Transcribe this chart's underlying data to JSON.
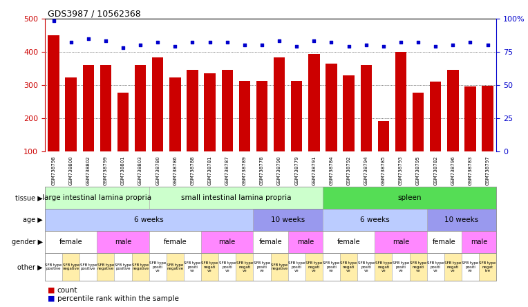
{
  "title": "GDS3987 / 10562368",
  "samples": [
    "GSM738798",
    "GSM738800",
    "GSM738802",
    "GSM738799",
    "GSM738801",
    "GSM738803",
    "GSM738780",
    "GSM738786",
    "GSM738788",
    "GSM738781",
    "GSM738787",
    "GSM738789",
    "GSM738778",
    "GSM738790",
    "GSM738779",
    "GSM738791",
    "GSM738784",
    "GSM738792",
    "GSM738794",
    "GSM738785",
    "GSM738793",
    "GSM738795",
    "GSM738782",
    "GSM738796",
    "GSM738783",
    "GSM738797"
  ],
  "counts": [
    450,
    322,
    360,
    360,
    278,
    360,
    383,
    322,
    345,
    335,
    345,
    312,
    312,
    383,
    312,
    393,
    365,
    328,
    360,
    193,
    400,
    278,
    310,
    345,
    295,
    298
  ],
  "percentiles": [
    98,
    82,
    85,
    83,
    78,
    80,
    82,
    79,
    82,
    82,
    82,
    80,
    80,
    83,
    79,
    83,
    82,
    79,
    80,
    79,
    82,
    82,
    79,
    80,
    82,
    80
  ],
  "tissue_blocks": [
    {
      "label": "large intestinal lamina propria",
      "start": 0,
      "end": 6,
      "color": "#ccffcc"
    },
    {
      "label": "small intestinal lamina propria",
      "start": 6,
      "end": 16,
      "color": "#ccffcc"
    },
    {
      "label": "spleen",
      "start": 16,
      "end": 26,
      "color": "#55dd55"
    }
  ],
  "age_blocks": [
    {
      "label": "6 weeks",
      "start": 0,
      "end": 12,
      "color": "#bbccff"
    },
    {
      "label": "10 weeks",
      "start": 12,
      "end": 16,
      "color": "#9999ee"
    },
    {
      "label": "6 weeks",
      "start": 16,
      "end": 22,
      "color": "#bbccff"
    },
    {
      "label": "10 weeks",
      "start": 22,
      "end": 26,
      "color": "#9999ee"
    }
  ],
  "gender_blocks": [
    {
      "label": "female",
      "start": 0,
      "end": 3,
      "color": "#ffffff"
    },
    {
      "label": "male",
      "start": 3,
      "end": 6,
      "color": "#ff88ff"
    },
    {
      "label": "female",
      "start": 6,
      "end": 9,
      "color": "#ffffff"
    },
    {
      "label": "male",
      "start": 9,
      "end": 12,
      "color": "#ff88ff"
    },
    {
      "label": "female",
      "start": 12,
      "end": 14,
      "color": "#ffffff"
    },
    {
      "label": "male",
      "start": 14,
      "end": 16,
      "color": "#ff88ff"
    },
    {
      "label": "female",
      "start": 16,
      "end": 19,
      "color": "#ffffff"
    },
    {
      "label": "male",
      "start": 19,
      "end": 22,
      "color": "#ff88ff"
    },
    {
      "label": "female",
      "start": 22,
      "end": 24,
      "color": "#ffffff"
    },
    {
      "label": "male",
      "start": 24,
      "end": 26,
      "color": "#ff88ff"
    }
  ],
  "other_blocks": [
    {
      "label": "SFB type\npositive",
      "start": 0,
      "end": 1,
      "color": "#ffffff"
    },
    {
      "label": "SFB type\nnegative",
      "start": 1,
      "end": 2,
      "color": "#ffeeaa"
    },
    {
      "label": "SFB type\npositive",
      "start": 2,
      "end": 3,
      "color": "#ffffff"
    },
    {
      "label": "SFB type\nnegative",
      "start": 3,
      "end": 4,
      "color": "#ffeeaa"
    },
    {
      "label": "SFB type\npositive",
      "start": 4,
      "end": 5,
      "color": "#ffffff"
    },
    {
      "label": "SFB type\nnegative",
      "start": 5,
      "end": 6,
      "color": "#ffeeaa"
    },
    {
      "label": "SFB type\npositi\nve",
      "start": 6,
      "end": 7,
      "color": "#ffffff"
    },
    {
      "label": "SFB type\nnegative",
      "start": 7,
      "end": 8,
      "color": "#ffeeaa"
    },
    {
      "label": "SFB type\npositi\nve",
      "start": 8,
      "end": 9,
      "color": "#ffffff"
    },
    {
      "label": "SFB type\nnegati\nve",
      "start": 9,
      "end": 10,
      "color": "#ffeeaa"
    },
    {
      "label": "SFB type\npositi\nve",
      "start": 10,
      "end": 11,
      "color": "#ffffff"
    },
    {
      "label": "SFB type\nnegati\nve",
      "start": 11,
      "end": 12,
      "color": "#ffeeaa"
    },
    {
      "label": "SFB type\npositi\nve",
      "start": 12,
      "end": 13,
      "color": "#ffffff"
    },
    {
      "label": "SFB type\nnegative",
      "start": 13,
      "end": 14,
      "color": "#ffeeaa"
    },
    {
      "label": "SFB type\npositi\nve",
      "start": 14,
      "end": 15,
      "color": "#ffffff"
    },
    {
      "label": "SFB type\nnegati\nve",
      "start": 15,
      "end": 16,
      "color": "#ffeeaa"
    },
    {
      "label": "SFB type\npositi\nve",
      "start": 16,
      "end": 17,
      "color": "#ffffff"
    },
    {
      "label": "SFB type\nnegati\nve",
      "start": 17,
      "end": 18,
      "color": "#ffeeaa"
    },
    {
      "label": "SFB type\npositi\nve",
      "start": 18,
      "end": 19,
      "color": "#ffffff"
    },
    {
      "label": "SFB type\nnegati\nve",
      "start": 19,
      "end": 20,
      "color": "#ffeeaa"
    },
    {
      "label": "SFB type\npositi\nve",
      "start": 20,
      "end": 21,
      "color": "#ffffff"
    },
    {
      "label": "SFB type\nnegati\nve",
      "start": 21,
      "end": 22,
      "color": "#ffeeaa"
    },
    {
      "label": "SFB type\npositi\nve",
      "start": 22,
      "end": 23,
      "color": "#ffffff"
    },
    {
      "label": "SFB type\nnegati\nve",
      "start": 23,
      "end": 24,
      "color": "#ffeeaa"
    },
    {
      "label": "SFB type\npositi\nve",
      "start": 24,
      "end": 25,
      "color": "#ffffff"
    },
    {
      "label": "SFB type\nnegat\nive",
      "start": 25,
      "end": 26,
      "color": "#ffeeaa"
    }
  ],
  "bar_color": "#cc0000",
  "dot_color": "#0000cc",
  "ylim_left": [
    100,
    500
  ],
  "ylim_right": [
    0,
    100
  ],
  "yticks_left": [
    100,
    200,
    300,
    400,
    500
  ],
  "yticks_right": [
    0,
    25,
    50,
    75,
    100
  ],
  "legend_count_color": "#cc0000",
  "legend_pct_color": "#0000cc"
}
